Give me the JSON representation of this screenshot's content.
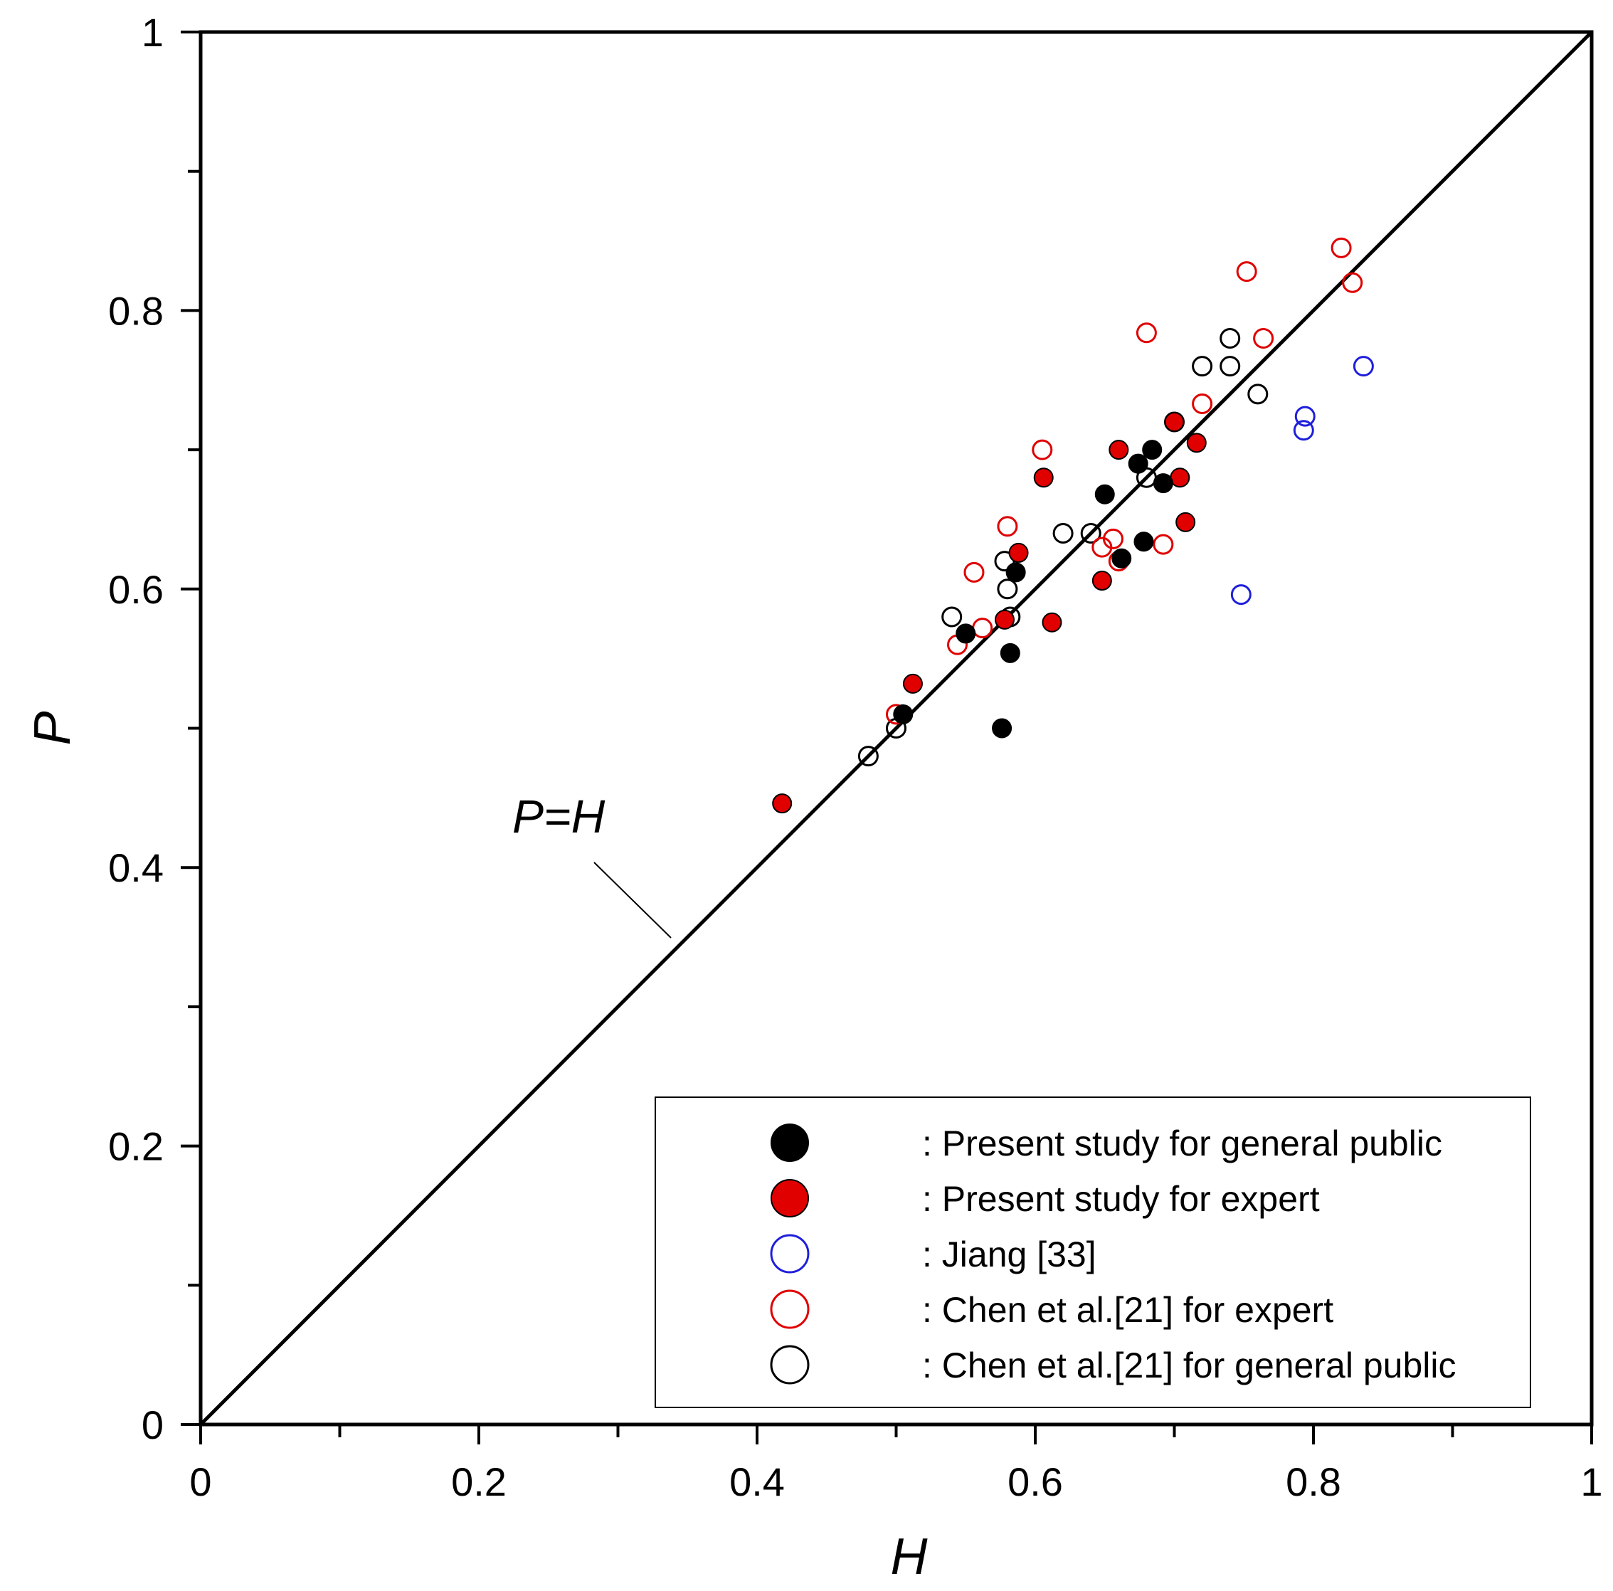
{
  "chart_data": {
    "type": "scatter",
    "title": "",
    "xlabel": "H",
    "ylabel": "P",
    "xlim": [
      0,
      1
    ],
    "ylim": [
      0,
      1
    ],
    "grid": false,
    "legend_position": "bottom-right",
    "x_ticks": [
      "0",
      "0.2",
      "0.4",
      "0.6",
      "0.8",
      "1"
    ],
    "y_ticks": [
      "0",
      "0.2",
      "0.4",
      "0.6",
      "0.8",
      "1"
    ],
    "reference_line": {
      "label": "P=H",
      "from": [
        0,
        0
      ],
      "to": [
        1,
        1
      ]
    },
    "series": [
      {
        "name": "Chen et al.[21] for general public",
        "legend_label": ": Chen et al.[21] for general public",
        "marker": "hollow",
        "color": "#000000",
        "points": [
          [
            0.48,
            0.48
          ],
          [
            0.5,
            0.5
          ],
          [
            0.54,
            0.58
          ],
          [
            0.578,
            0.62
          ],
          [
            0.58,
            0.6
          ],
          [
            0.582,
            0.58
          ],
          [
            0.62,
            0.64
          ],
          [
            0.64,
            0.64
          ],
          [
            0.68,
            0.68
          ],
          [
            0.7,
            0.72
          ],
          [
            0.72,
            0.76
          ],
          [
            0.74,
            0.76
          ],
          [
            0.74,
            0.78
          ],
          [
            0.76,
            0.74
          ]
        ]
      },
      {
        "name": "Chen et al.[21] for expert",
        "legend_label": ": Chen et al.[21] for expert",
        "marker": "hollow",
        "color": "#e00000",
        "points": [
          [
            0.5,
            0.51
          ],
          [
            0.544,
            0.56
          ],
          [
            0.556,
            0.612
          ],
          [
            0.562,
            0.572
          ],
          [
            0.58,
            0.645
          ],
          [
            0.605,
            0.7
          ],
          [
            0.648,
            0.63
          ],
          [
            0.656,
            0.636
          ],
          [
            0.66,
            0.62
          ],
          [
            0.68,
            0.784
          ],
          [
            0.692,
            0.632
          ],
          [
            0.72,
            0.733
          ],
          [
            0.752,
            0.828
          ],
          [
            0.764,
            0.78
          ],
          [
            0.82,
            0.845
          ],
          [
            0.828,
            0.82
          ]
        ]
      },
      {
        "name": "Jiang [33]",
        "legend_label": ": Jiang [33]",
        "marker": "hollow",
        "color": "#1f1fdc",
        "points": [
          [
            0.748,
            0.596
          ],
          [
            0.793,
            0.714
          ],
          [
            0.794,
            0.724
          ],
          [
            0.836,
            0.76
          ]
        ]
      },
      {
        "name": "Present study for expert",
        "legend_label": ": Present study for expert",
        "marker": "filled",
        "color": "#e00000",
        "points": [
          [
            0.418,
            0.446
          ],
          [
            0.512,
            0.532
          ],
          [
            0.578,
            0.578
          ],
          [
            0.588,
            0.626
          ],
          [
            0.612,
            0.576
          ],
          [
            0.606,
            0.68
          ],
          [
            0.648,
            0.606
          ],
          [
            0.66,
            0.7
          ],
          [
            0.7,
            0.72
          ],
          [
            0.704,
            0.68
          ],
          [
            0.708,
            0.648
          ],
          [
            0.716,
            0.705
          ]
        ]
      },
      {
        "name": "Present study  for general public",
        "legend_label": ": Present study  for general public",
        "marker": "filled",
        "color": "#000000",
        "points": [
          [
            0.505,
            0.51
          ],
          [
            0.55,
            0.568
          ],
          [
            0.576,
            0.5
          ],
          [
            0.582,
            0.554
          ],
          [
            0.586,
            0.612
          ],
          [
            0.65,
            0.668
          ],
          [
            0.662,
            0.622
          ],
          [
            0.674,
            0.69
          ],
          [
            0.678,
            0.634
          ],
          [
            0.684,
            0.7
          ],
          [
            0.692,
            0.676
          ]
        ]
      }
    ],
    "legend_order": [
      "Present study  for general public",
      "Present study for expert",
      "Jiang [33]",
      "Chen et al.[21] for expert",
      "Chen et al.[21] for general public"
    ]
  }
}
